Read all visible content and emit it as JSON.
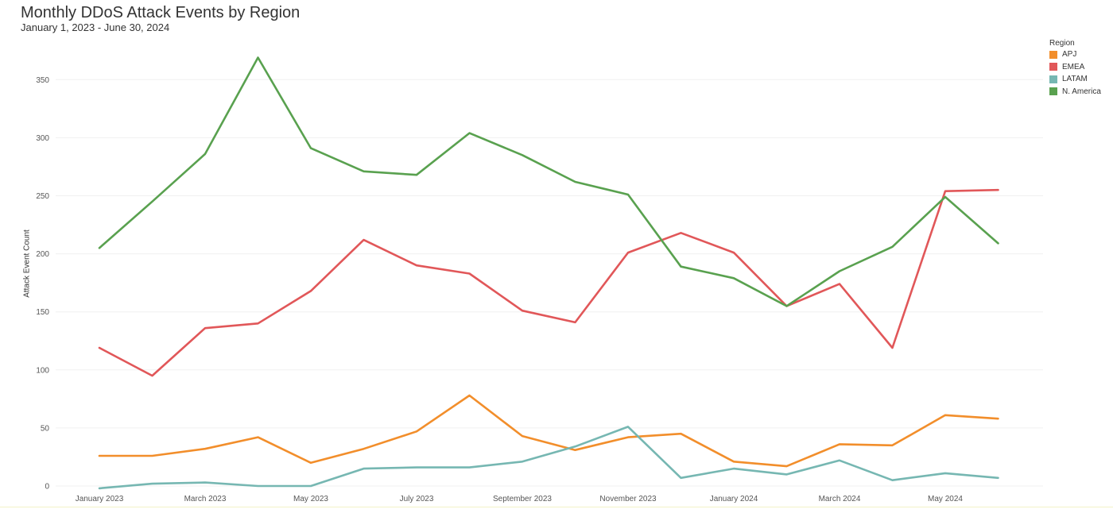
{
  "chart_data": {
    "type": "line",
    "title": "Monthly DDoS Attack Events by Region",
    "subtitle": "January 1, 2023 - June 30, 2024",
    "xlabel": "",
    "ylabel": "Attack Event Count",
    "x": [
      "2023-01",
      "2023-02",
      "2023-03",
      "2023-04",
      "2023-05",
      "2023-06",
      "2023-07",
      "2023-08",
      "2023-09",
      "2023-10",
      "2023-11",
      "2023-12",
      "2024-01",
      "2024-02",
      "2024-03",
      "2024-04",
      "2024-05",
      "2024-06"
    ],
    "x_ticks": [
      "January 2023",
      "March 2023",
      "May 2023",
      "July 2023",
      "September 2023",
      "November 2023",
      "January 2024",
      "March 2024",
      "May 2024"
    ],
    "y_ticks": [
      0,
      50,
      100,
      150,
      200,
      250,
      300,
      350
    ],
    "ylim": [
      0,
      370
    ],
    "legend_title": "Region",
    "legend_position": "top-right",
    "grid": true,
    "series": [
      {
        "name": "APJ",
        "color": "#f28e2b",
        "values": [
          26,
          26,
          32,
          42,
          20,
          32,
          47,
          78,
          43,
          31,
          42,
          45,
          21,
          17,
          36,
          35,
          61,
          58
        ]
      },
      {
        "name": "EMEA",
        "color": "#e15759",
        "values": [
          119,
          95,
          136,
          140,
          168,
          212,
          190,
          183,
          151,
          141,
          201,
          218,
          201,
          155,
          174,
          119,
          254,
          255
        ]
      },
      {
        "name": "LATAM",
        "color": "#76b7b2",
        "values": [
          -2,
          2,
          3,
          0,
          0,
          15,
          16,
          16,
          21,
          34,
          51,
          7,
          15,
          10,
          22,
          5,
          11,
          7
        ]
      },
      {
        "name": "N. America",
        "color": "#59a14f",
        "values": [
          205,
          245,
          286,
          369,
          291,
          271,
          268,
          304,
          285,
          262,
          251,
          189,
          179,
          155,
          185,
          206,
          249,
          209
        ]
      }
    ]
  }
}
